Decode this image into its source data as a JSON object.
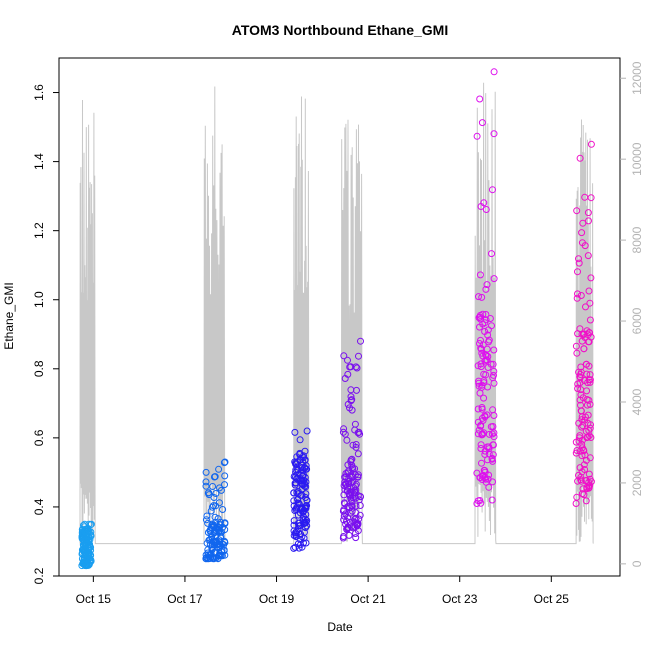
{
  "chart_data": {
    "type": "scatter",
    "title": "ATOM3 Northbound Ethane_GMI",
    "xlabel": "Date",
    "ylabel": "Ethane_GMI",
    "x_tick_labels": [
      "Oct 15",
      "Oct 17",
      "Oct 19",
      "Oct 21",
      "Oct 23",
      "Oct 25"
    ],
    "x_ticks": [
      "2017-10-15",
      "2017-10-17",
      "2017-10-19",
      "2017-10-21",
      "2017-10-23",
      "2017-10-25"
    ],
    "xlim": [
      "2017-10-14T06:00",
      "2017-10-26T12:00"
    ],
    "ylim": [
      0.2,
      1.7
    ],
    "y_ticks": [
      0.2,
      0.4,
      0.6,
      0.8,
      1.0,
      1.2,
      1.4,
      1.6
    ],
    "y_tick_labels": [
      "0.2",
      "0.4",
      "0.6",
      "0.8",
      "1.0",
      "1.2",
      "1.4",
      "1.6"
    ],
    "right_axis": {
      "ylim": [
        -300,
        12500
      ],
      "ticks": [
        0,
        2000,
        4000,
        6000,
        8000,
        10000,
        12000
      ],
      "tick_labels": [
        "0",
        "2000",
        "4000",
        "6000",
        "8000",
        "10000",
        "12000"
      ],
      "color": "#b3b3b3"
    },
    "grid": false,
    "legend": "none",
    "series": [
      {
        "color": "#1a9ef0",
        "time_range": [
          "2017-10-14T18:00",
          "2017-10-14T23:00"
        ],
        "y_range": [
          0.23,
          0.35
        ],
        "y_mode": 0.29
      },
      {
        "color": "#1166ee",
        "time_range": [
          "2017-10-17T11:00",
          "2017-10-17T21:00"
        ],
        "y_range": [
          0.25,
          0.53
        ],
        "y_mode": 0.3
      },
      {
        "color": "#2a1af0",
        "time_range": [
          "2017-10-19T09:00",
          "2017-10-19T16:00"
        ],
        "y_range": [
          0.28,
          0.62
        ],
        "y_mode": 0.42
      },
      {
        "color": "#7a10ee",
        "time_range": [
          "2017-10-20T11:00",
          "2017-10-20T20:00"
        ],
        "y_range": [
          0.31,
          0.88
        ],
        "y_mode": 0.42
      },
      {
        "color": "#dd10ee",
        "time_range": [
          "2017-10-23T09:00",
          "2017-10-23T18:00"
        ],
        "y_range": [
          0.41,
          1.66
        ],
        "y_mode": 0.7
      },
      {
        "color": "#f010c8",
        "time_range": [
          "2017-10-25T13:00",
          "2017-10-25T21:00"
        ],
        "y_range": [
          0.41,
          1.45
        ],
        "y_mode": 0.7
      }
    ],
    "altitude_trace": {
      "color": "#c8c8c8",
      "axis": "right",
      "baseline": 500,
      "flights": [
        {
          "start": "2017-10-14T17:00",
          "end": "2017-10-15T01:00",
          "max": 11500
        },
        {
          "start": "2017-10-17T10:00",
          "end": "2017-10-17T21:00",
          "max": 12100
        },
        {
          "start": "2017-10-19T09:00",
          "end": "2017-10-19T17:00",
          "max": 11600
        },
        {
          "start": "2017-10-20T10:00",
          "end": "2017-10-20T21:00",
          "max": 11200
        },
        {
          "start": "2017-10-23T08:00",
          "end": "2017-10-23T19:00",
          "max": 11900
        },
        {
          "start": "2017-10-25T13:00",
          "end": "2017-10-25T22:00",
          "max": 11000
        }
      ]
    }
  }
}
